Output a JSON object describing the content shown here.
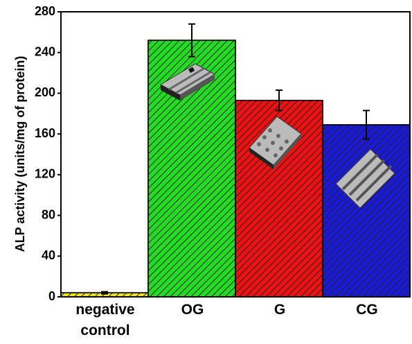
{
  "chart_data": {
    "type": "bar",
    "y_label": "ALP activity (units/mg of protein)",
    "categories": [
      "negative control",
      "OG",
      "G",
      "CG"
    ],
    "values": [
      4,
      252,
      193,
      169
    ],
    "errors": [
      1,
      16,
      10,
      14
    ],
    "colors": [
      "#f2e600",
      "#22dd22",
      "#ee1111",
      "#1a1ad6"
    ],
    "ylim": [
      0,
      280
    ],
    "yticks": [
      0,
      40,
      80,
      120,
      160,
      200,
      240,
      280
    ]
  }
}
